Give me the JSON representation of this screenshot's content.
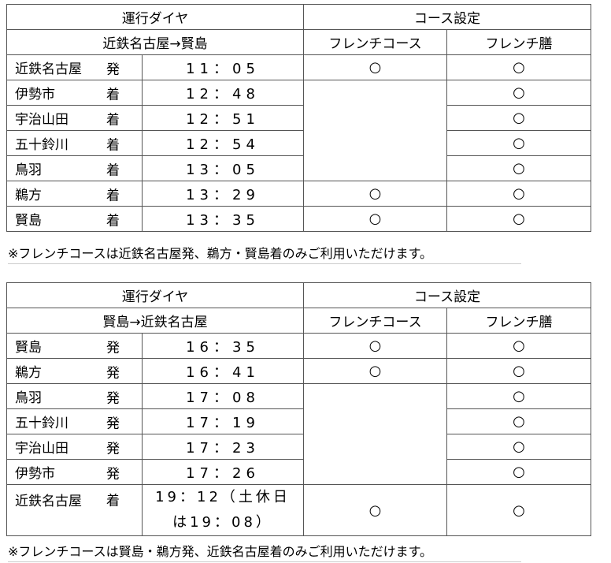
{
  "tables": [
    {
      "header": {
        "schedule": "運行ダイヤ",
        "course": "コース設定",
        "direction": "近鉄名古屋→賢島",
        "col_course": "フレンチコース",
        "col_zen": "フレンチ膳"
      },
      "rows": [
        {
          "station": "近鉄名古屋",
          "type": "発",
          "time": "11：05",
          "course": "○",
          "zen": "○"
        },
        {
          "station": "伊勢市",
          "type": "着",
          "time": "12：48",
          "course": "",
          "zen": "○"
        },
        {
          "station": "宇治山田",
          "type": "着",
          "time": "12：51",
          "course": "",
          "zen": "○"
        },
        {
          "station": "五十鈴川",
          "type": "着",
          "time": "12：54",
          "course": "",
          "zen": "○"
        },
        {
          "station": "鳥羽",
          "type": "着",
          "time": "13：05",
          "course": "",
          "zen": "○"
        },
        {
          "station": "鵜方",
          "type": "着",
          "time": "13：29",
          "course": "○",
          "zen": "○"
        },
        {
          "station": "賢島",
          "type": "着",
          "time": "13：35",
          "course": "○",
          "zen": "○"
        }
      ],
      "note": "※フレンチコースは近鉄名古屋発、鵜方・賢島着のみご利用いただけます。"
    },
    {
      "header": {
        "schedule": "運行ダイヤ",
        "course": "コース設定",
        "direction": "賢島→近鉄名古屋",
        "col_course": "フレンチコース",
        "col_zen": "フレンチ膳"
      },
      "rows": [
        {
          "station": "賢島",
          "type": "発",
          "time": "16：35",
          "course": "○",
          "zen": "○"
        },
        {
          "station": "鵜方",
          "type": "発",
          "time": "16：41",
          "course": "○",
          "zen": "○"
        },
        {
          "station": "鳥羽",
          "type": "発",
          "time": "17：08",
          "course": "",
          "zen": "○"
        },
        {
          "station": "五十鈴川",
          "type": "発",
          "time": "17：19",
          "course": "",
          "zen": "○"
        },
        {
          "station": "宇治山田",
          "type": "発",
          "time": "17：23",
          "course": "",
          "zen": "○"
        },
        {
          "station": "伊勢市",
          "type": "発",
          "time": "17：26",
          "course": "",
          "zen": "○"
        },
        {
          "station": "近鉄名古屋",
          "type": "着",
          "time": "19：12（土休日は19：08）",
          "course": "○",
          "zen": "○"
        }
      ],
      "note": "※フレンチコースは賢島・鵜方発、近鉄名古屋着のみご利用いただけます。"
    }
  ]
}
